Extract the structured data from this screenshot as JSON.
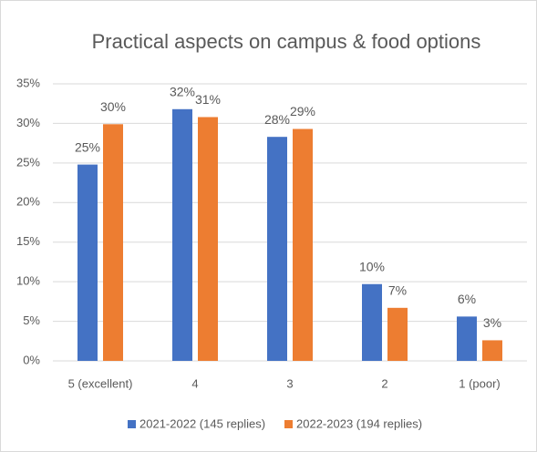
{
  "chart_data": {
    "type": "bar",
    "title": "Practical aspects on campus & food options",
    "categories": [
      "5 (excellent)",
      "4",
      "3",
      "2",
      "1 (poor)"
    ],
    "series": [
      {
        "name": "2021-2022 (145 replies)",
        "color": "#4472c4",
        "values": [
          24.8,
          31.8,
          28.3,
          9.7,
          5.6
        ],
        "value_labels": [
          "25%",
          "32%",
          "28%",
          "10%",
          "6%"
        ]
      },
      {
        "name": "2022-2023 (194 replies)",
        "color": "#ed7d31",
        "values": [
          29.9,
          30.8,
          29.3,
          6.7,
          2.6
        ],
        "value_labels": [
          "30%",
          "31%",
          "29%",
          "7%",
          "3%"
        ]
      }
    ],
    "ylim": [
      0,
      35
    ],
    "yticks": [
      {
        "value": 0,
        "label": "0%"
      },
      {
        "value": 5,
        "label": "5%"
      },
      {
        "value": 10,
        "label": "10%"
      },
      {
        "value": 15,
        "label": "15%"
      },
      {
        "value": 20,
        "label": "20%"
      },
      {
        "value": 25,
        "label": "25%"
      },
      {
        "value": 30,
        "label": "30%"
      },
      {
        "value": 35,
        "label": "35%"
      }
    ],
    "grid": true,
    "legend": "bottom"
  }
}
